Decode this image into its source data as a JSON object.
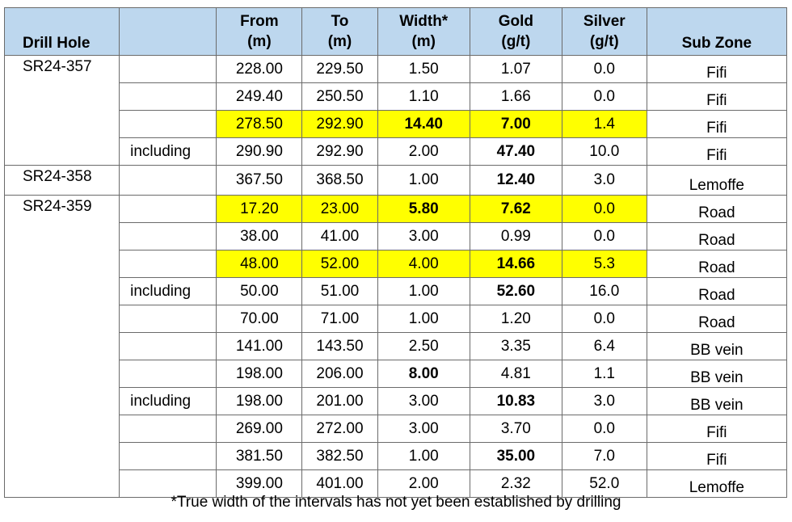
{
  "table": {
    "headers": {
      "drill_hole": "Drill Hole",
      "from_1": "From",
      "from_2": "(m)",
      "to_1": "To",
      "to_2": "(m)",
      "width_1": "Width*",
      "width_2": "(m)",
      "gold_1": "Gold",
      "gold_2": "(g/t)",
      "silver_1": "Silver",
      "silver_2": "(g/t)",
      "sub_zone": "Sub Zone"
    },
    "holes": [
      "SR24-357",
      "SR24-358",
      "SR24-359"
    ],
    "rows": [
      {
        "note": "",
        "from": "228.00",
        "to": "229.50",
        "width": "1.50",
        "gold": "1.07",
        "silver": "0.0",
        "zone": "Fifi"
      },
      {
        "note": "",
        "from": "249.40",
        "to": "250.50",
        "width": "1.10",
        "gold": "1.66",
        "silver": "0.0",
        "zone": "Fifi"
      },
      {
        "note": "",
        "from": "278.50",
        "to": "292.90",
        "width": "14.40",
        "gold": "7.00",
        "silver": "1.4",
        "zone": "Fifi"
      },
      {
        "note": "including",
        "from": "290.90",
        "to": "292.90",
        "width": "2.00",
        "gold": "47.40",
        "silver": "10.0",
        "zone": "Fifi"
      },
      {
        "note": "",
        "from": "367.50",
        "to": "368.50",
        "width": "1.00",
        "gold": "12.40",
        "silver": "3.0",
        "zone": "Lemoffe"
      },
      {
        "note": "",
        "from": "17.20",
        "to": "23.00",
        "width": "5.80",
        "gold": "7.62",
        "silver": "0.0",
        "zone": "Road"
      },
      {
        "note": "",
        "from": "38.00",
        "to": "41.00",
        "width": "3.00",
        "gold": "0.99",
        "silver": "0.0",
        "zone": "Road"
      },
      {
        "note": "",
        "from": "48.00",
        "to": "52.00",
        "width": "4.00",
        "gold": "14.66",
        "silver": "5.3",
        "zone": "Road"
      },
      {
        "note": "including",
        "from": "50.00",
        "to": "51.00",
        "width": "1.00",
        "gold": "52.60",
        "silver": "16.0",
        "zone": "Road"
      },
      {
        "note": "",
        "from": "70.00",
        "to": "71.00",
        "width": "1.00",
        "gold": "1.20",
        "silver": "0.0",
        "zone": "Road"
      },
      {
        "note": "",
        "from": "141.00",
        "to": "143.50",
        "width": "2.50",
        "gold": "3.35",
        "silver": "6.4",
        "zone": "BB vein"
      },
      {
        "note": "",
        "from": "198.00",
        "to": "206.00",
        "width": "8.00",
        "gold": "4.81",
        "silver": "1.1",
        "zone": "BB vein"
      },
      {
        "note": "including",
        "from": "198.00",
        "to": "201.00",
        "width": "3.00",
        "gold": "10.83",
        "silver": "3.0",
        "zone": "BB vein"
      },
      {
        "note": "",
        "from": "269.00",
        "to": "272.00",
        "width": "3.00",
        "gold": "3.70",
        "silver": "0.0",
        "zone": "Fifi"
      },
      {
        "note": "",
        "from": "381.50",
        "to": "382.50",
        "width": "1.00",
        "gold": "35.00",
        "silver": "7.0",
        "zone": "Fifi"
      },
      {
        "note": "",
        "from": "399.00",
        "to": "401.00",
        "width": "2.00",
        "gold": "2.32",
        "silver": "52.0",
        "zone": "Lemoffe"
      }
    ]
  },
  "footnote": "*True width of the intervals has not yet been established by drilling",
  "colors": {
    "header_bg": "#bdd7ee",
    "highlight": "#ffff00",
    "border": "#6b6b6b"
  }
}
